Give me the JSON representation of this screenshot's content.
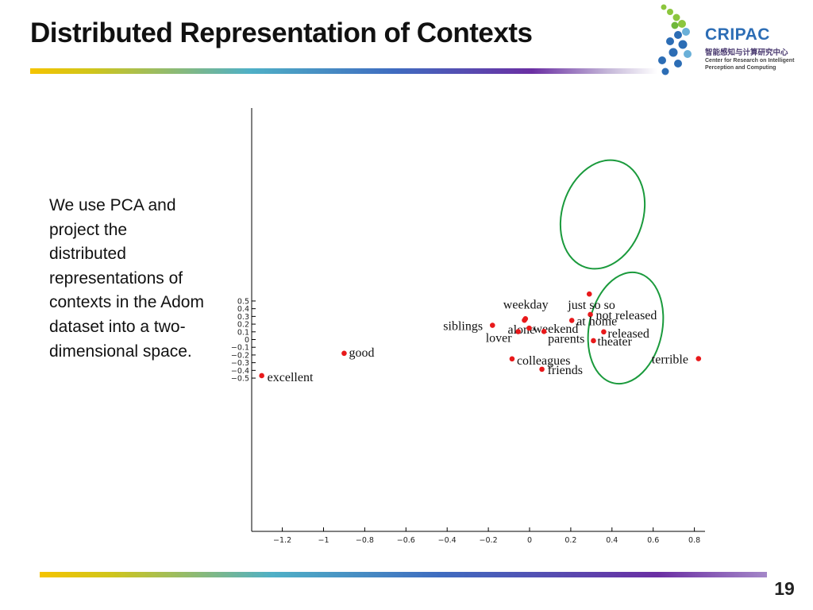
{
  "slide": {
    "title": "Distributed Representation of Contexts",
    "description": "We use PCA and project the distributed representations of contexts in the Adom dataset into a two-dimensional space.",
    "page_number": "19"
  },
  "logo": {
    "name": "CRIPAC",
    "chinese": "智能感知与计算研究中心",
    "english_line1": "Center for Research on Intelligent",
    "english_line2": "Perception and Computing"
  },
  "colors": {
    "point": "#e8191b",
    "highlight": "#1a9a3c",
    "logo_blue": "#2c6db5",
    "logo_green": "#8cc63e"
  },
  "chart_data": {
    "type": "scatter",
    "title": "",
    "xlabel": "",
    "ylabel": "",
    "xlim": [
      -1.32,
      0.84
    ],
    "ylim": [
      -0.5,
      0.6
    ],
    "xticks": [
      "−1.2",
      "−1",
      "−0.8",
      "−0.6",
      "−0.4",
      "−0.2",
      "0",
      "0.2",
      "0.4",
      "0.6",
      "0.8"
    ],
    "yticks": [
      "−0.5",
      "−0.4",
      "−0.3",
      "−0.2",
      "−0.1",
      "0",
      "0.1",
      "0.2",
      "0.3",
      "0.4",
      "0.5"
    ],
    "points": [
      {
        "label": "just so so",
        "x": 0.29,
        "y": 0.59
      },
      {
        "label": "not released",
        "x": 0.295,
        "y": 0.325
      },
      {
        "label": "weekday",
        "x": -0.02,
        "y": 0.27
      },
      {
        "label": "alone",
        "x": -0.025,
        "y": 0.25
      },
      {
        "label": "at home",
        "x": 0.205,
        "y": 0.248
      },
      {
        "label": "siblings",
        "x": -0.18,
        "y": 0.185
      },
      {
        "label": "weekend",
        "x": -0.002,
        "y": 0.148
      },
      {
        "label": "lover",
        "x": -0.055,
        "y": 0.103
      },
      {
        "label": "parents",
        "x": 0.07,
        "y": 0.105
      },
      {
        "label": "released",
        "x": 0.36,
        "y": 0.1
      },
      {
        "label": "theater",
        "x": 0.31,
        "y": -0.015
      },
      {
        "label": "good",
        "x": -0.9,
        "y": -0.178
      },
      {
        "label": "colleagues",
        "x": -0.085,
        "y": -0.25
      },
      {
        "label": "terrible",
        "x": 0.82,
        "y": -0.248
      },
      {
        "label": "friends",
        "x": 0.06,
        "y": -0.385
      },
      {
        "label": "excellent",
        "x": -1.3,
        "y": -0.468
      }
    ]
  }
}
